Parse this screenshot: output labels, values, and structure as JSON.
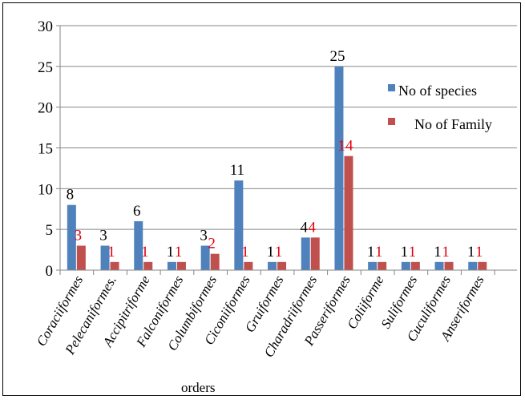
{
  "chart_data": {
    "type": "bar",
    "xlabel": "orders",
    "ylabel": "",
    "ylim": [
      0,
      30
    ],
    "yticks": [
      0,
      5,
      10,
      15,
      20,
      25,
      30
    ],
    "grid": true,
    "legend_position": "right",
    "categories": [
      "Coraciiformes",
      "Pelecaniformes.",
      "Accipitriforme",
      "Falconiformes",
      "Columbiformes",
      "Ciconiiformes",
      "Gruiformes",
      "Charadriiformes",
      "Passeriformes",
      "Coliiforme",
      "Suliformes",
      "Cuculiformes",
      "Anseriformes"
    ],
    "series": [
      {
        "name": "No of species",
        "color": "#4F81BD",
        "label_color": "#000000",
        "values": [
          8,
          3,
          6,
          1,
          3,
          11,
          1,
          4,
          25,
          1,
          1,
          1,
          1
        ]
      },
      {
        "name": "No of Family",
        "color": "#C0504D",
        "label_color": "#E0000F",
        "values": [
          3,
          1,
          1,
          1,
          2,
          1,
          1,
          4,
          14,
          1,
          1,
          1,
          1
        ]
      }
    ]
  }
}
